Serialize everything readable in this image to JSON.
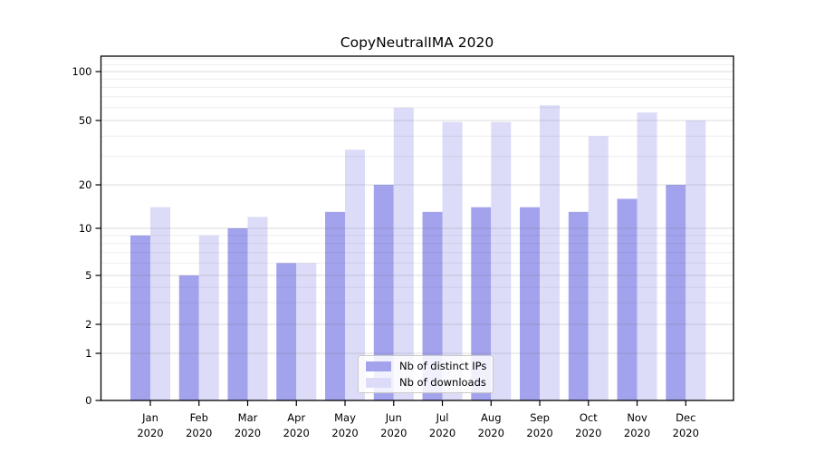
{
  "title": "CopyNeutralIMA 2020",
  "chart_data": {
    "type": "bar",
    "title": "CopyNeutralIMA 2020",
    "categories": [
      "Jan 2020",
      "Feb 2020",
      "Mar 2020",
      "Apr 2020",
      "May 2020",
      "Jun 2020",
      "Jul 2020",
      "Aug 2020",
      "Sep 2020",
      "Oct 2020",
      "Nov 2020",
      "Dec 2020"
    ],
    "x_tick_months": [
      "Jan",
      "Feb",
      "Mar",
      "Apr",
      "May",
      "Jun",
      "Jul",
      "Aug",
      "Sep",
      "Oct",
      "Nov",
      "Dec"
    ],
    "x_tick_year": "2020",
    "series": [
      {
        "name": "Nb of distinct IPs",
        "color": "#a3a3ed",
        "values": [
          9,
          5,
          10,
          6,
          13,
          20,
          13,
          14,
          14,
          13,
          16,
          20
        ]
      },
      {
        "name": "Nb of downloads",
        "color": "#dcdcf8",
        "values": [
          14,
          9,
          12,
          6,
          33,
          60,
          49,
          49,
          62,
          40,
          56,
          50
        ]
      }
    ],
    "xlabel": "",
    "ylabel": "",
    "yscale": "symlog",
    "y_ticks": [
      0,
      1,
      2,
      5,
      10,
      20,
      50,
      100
    ],
    "y_tick_labels": [
      "0",
      "1",
      "2",
      "5",
      "10",
      "20",
      "50",
      "100"
    ],
    "y_minor_ticks": [
      3,
      4,
      6,
      7,
      8,
      9,
      30,
      40,
      60,
      70,
      80,
      90,
      110,
      120
    ],
    "ylim": [
      0,
      125
    ],
    "grid": true,
    "legend_position": "lower center"
  },
  "colors": {
    "bar_dark": "#a3a3ed",
    "bar_light": "#dcdcf8",
    "grid_major": "#d2d2d2",
    "grid_minor": "#ececec",
    "axis": "#000000",
    "text": "#000000"
  }
}
